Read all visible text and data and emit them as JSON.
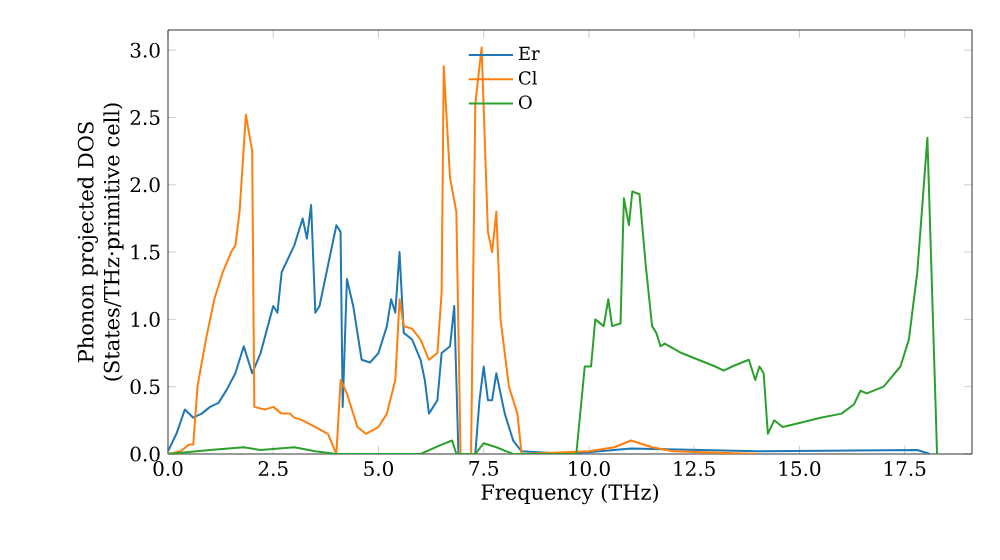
{
  "chart_data": {
    "type": "line",
    "xlabel": "Frequency (THz)",
    "ylabel": "Phonon projected DOS (States/THz·primitive cell)",
    "xlim": [
      0,
      19.1
    ],
    "ylim": [
      0,
      3.15
    ],
    "xticks": [
      {
        "value": 0,
        "label": "0.0"
      },
      {
        "value": 2.5,
        "label": "2.5"
      },
      {
        "value": 5,
        "label": "5.0"
      },
      {
        "value": 7.5,
        "label": "7.5"
      },
      {
        "value": 10,
        "label": "10.0"
      },
      {
        "value": 12.5,
        "label": "12.5"
      },
      {
        "value": 15,
        "label": "15.0"
      },
      {
        "value": 17.5,
        "label": "17.5"
      }
    ],
    "yticks": [
      {
        "value": 0,
        "label": "0.0"
      },
      {
        "value": 0.5,
        "label": "0.5"
      },
      {
        "value": 1,
        "label": "1.0"
      },
      {
        "value": 1.5,
        "label": "1.5"
      },
      {
        "value": 2,
        "label": "2.0"
      },
      {
        "value": 2.5,
        "label": "2.5"
      },
      {
        "value": 3,
        "label": "3.0"
      }
    ],
    "grid": false,
    "legend": "top",
    "line_style": "solid",
    "marker": "none",
    "series": [
      {
        "name": "Er",
        "color": "#1f77b4",
        "x": [
          0,
          0.2,
          0.4,
          0.6,
          0.8,
          1.0,
          1.2,
          1.4,
          1.6,
          1.8,
          2.0,
          2.2,
          2.5,
          2.6,
          2.7,
          3.0,
          3.2,
          3.3,
          3.4,
          3.5,
          3.6,
          3.8,
          4.0,
          4.1,
          4.15,
          4.25,
          4.4,
          4.6,
          4.8,
          5.0,
          5.2,
          5.3,
          5.4,
          5.5,
          5.6,
          5.8,
          6.0,
          6.1,
          6.2,
          6.4,
          6.5,
          6.7,
          6.8,
          6.9,
          7.3,
          7.4,
          7.5,
          7.6,
          7.7,
          7.8,
          8.0,
          8.2,
          8.4,
          9.5,
          11,
          14,
          17.8,
          18.1
        ],
        "values": [
          0.02,
          0.15,
          0.33,
          0.27,
          0.3,
          0.35,
          0.38,
          0.48,
          0.6,
          0.8,
          0.6,
          0.75,
          1.1,
          1.05,
          1.35,
          1.55,
          1.75,
          1.6,
          1.85,
          1.05,
          1.1,
          1.4,
          1.7,
          1.65,
          0.35,
          1.3,
          1.1,
          0.7,
          0.68,
          0.75,
          0.95,
          1.15,
          1.05,
          1.5,
          0.9,
          0.85,
          0.7,
          0.55,
          0.3,
          0.4,
          0.75,
          0.8,
          1.1,
          0.0,
          0.0,
          0.4,
          0.65,
          0.4,
          0.4,
          0.6,
          0.3,
          0.1,
          0.02,
          0.0,
          0.04,
          0.02,
          0.03,
          0.0
        ]
      },
      {
        "name": "Cl",
        "color": "#ff7f0e",
        "x": [
          0,
          0.3,
          0.5,
          0.6,
          0.7,
          0.9,
          1.1,
          1.3,
          1.5,
          1.6,
          1.7,
          1.85,
          2.0,
          2.05,
          2.3,
          2.5,
          2.7,
          2.9,
          3.0,
          3.2,
          3.5,
          3.8,
          4.0,
          4.1,
          4.25,
          4.5,
          4.7,
          5.0,
          5.2,
          5.4,
          5.5,
          5.6,
          5.8,
          6.0,
          6.2,
          6.4,
          6.5,
          6.55,
          6.7,
          6.85,
          6.95,
          7.2,
          7.3,
          7.45,
          7.6,
          7.7,
          7.8,
          7.9,
          8.1,
          8.3,
          8.4,
          10.0,
          10.6,
          11.0,
          11.5,
          12.0,
          14.0
        ],
        "values": [
          0.0,
          0.02,
          0.07,
          0.07,
          0.5,
          0.85,
          1.15,
          1.35,
          1.5,
          1.55,
          1.8,
          2.52,
          2.25,
          0.35,
          0.33,
          0.35,
          0.3,
          0.3,
          0.27,
          0.25,
          0.2,
          0.15,
          0.0,
          0.55,
          0.45,
          0.2,
          0.15,
          0.2,
          0.3,
          0.55,
          1.15,
          0.95,
          0.93,
          0.85,
          0.7,
          0.75,
          1.2,
          2.88,
          2.05,
          1.8,
          0.0,
          0.0,
          2.6,
          3.02,
          1.65,
          1.5,
          1.8,
          1.0,
          0.5,
          0.3,
          0.0,
          0.02,
          0.05,
          0.1,
          0.05,
          0.02,
          0.0
        ]
      },
      {
        "name": "O",
        "color": "#2ca02c",
        "x": [
          0,
          1.0,
          1.8,
          2.2,
          3.0,
          3.5,
          4.0,
          6.0,
          6.5,
          6.75,
          6.85,
          7.3,
          7.5,
          7.8,
          8.2,
          9.7,
          9.9,
          10.05,
          10.15,
          10.35,
          10.46,
          10.55,
          10.75,
          10.83,
          10.95,
          11.03,
          11.2,
          11.35,
          11.5,
          11.6,
          11.7,
          11.8,
          12.2,
          12.6,
          13.0,
          13.2,
          13.4,
          13.8,
          13.95,
          14.05,
          14.15,
          14.25,
          14.4,
          14.6,
          15.0,
          15.5,
          16.0,
          16.3,
          16.45,
          16.6,
          17.0,
          17.4,
          17.6,
          17.8,
          18.04,
          18.27
        ],
        "values": [
          0.0,
          0.03,
          0.05,
          0.03,
          0.05,
          0.02,
          0.0,
          0.0,
          0.07,
          0.1,
          0.0,
          0.0,
          0.08,
          0.05,
          0.0,
          0.0,
          0.65,
          0.65,
          1.0,
          0.95,
          1.15,
          0.95,
          0.97,
          1.9,
          1.7,
          1.95,
          1.93,
          1.4,
          0.95,
          0.9,
          0.8,
          0.82,
          0.75,
          0.7,
          0.65,
          0.62,
          0.65,
          0.7,
          0.55,
          0.65,
          0.6,
          0.15,
          0.25,
          0.2,
          0.23,
          0.27,
          0.3,
          0.37,
          0.47,
          0.45,
          0.5,
          0.65,
          0.85,
          1.35,
          2.35,
          0.0
        ]
      }
    ]
  }
}
